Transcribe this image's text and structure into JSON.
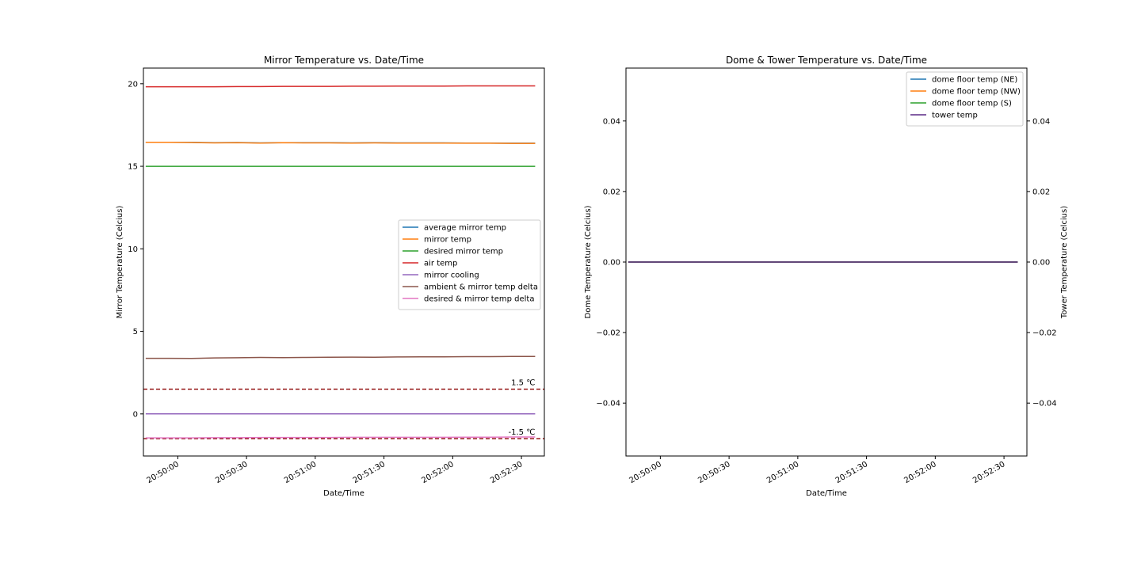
{
  "colors": {
    "average_mirror_temp": "#1f77b4",
    "mirror_temp": "#ff7f0e",
    "desired_mirror_temp": "#2ca02c",
    "air_temp": "#d62728",
    "mirror_cooling": "#9467bd",
    "ambient_delta": "#8c564b",
    "desired_delta": "#e377c2",
    "threshold": "#8b0000",
    "tower_temp": "#5b2a86"
  },
  "chart_data": [
    {
      "type": "line",
      "title": "Mirror Temperature vs. Date/Time",
      "xlabel": "Date/Time",
      "ylabel": "Mirror Temperature (Celcius)",
      "x_range": [
        "20:49:45",
        "20:52:40"
      ],
      "ylim": [
        -2.55,
        20.95
      ],
      "x_ticks": [
        "20:50:00",
        "20:50:30",
        "20:51:00",
        "20:51:30",
        "20:52:00",
        "20:52:30"
      ],
      "y_ticks": [
        "0",
        "5",
        "10",
        "15",
        "20"
      ],
      "y_tick_values": [
        0,
        5,
        10,
        15,
        20
      ],
      "legend_position": "center-right",
      "grid": false,
      "x": [
        "20:49:46",
        "20:49:56",
        "20:50:06",
        "20:50:16",
        "20:50:26",
        "20:50:36",
        "20:50:46",
        "20:50:56",
        "20:51:06",
        "20:51:16",
        "20:51:26",
        "20:51:36",
        "20:51:46",
        "20:51:56",
        "20:52:06",
        "20:52:16",
        "20:52:26",
        "20:52:36"
      ],
      "series": [
        {
          "name": "average mirror temp",
          "color_key": "average_mirror_temp",
          "values": [
            16.45,
            16.45,
            16.45,
            16.43,
            16.44,
            16.42,
            16.43,
            16.43,
            16.43,
            16.42,
            16.43,
            16.42,
            16.42,
            16.42,
            16.41,
            16.41,
            16.4,
            16.4
          ]
        },
        {
          "name": "mirror temp",
          "color_key": "mirror_temp",
          "values": [
            16.45,
            16.45,
            16.44,
            16.42,
            16.43,
            16.41,
            16.43,
            16.42,
            16.42,
            16.41,
            16.42,
            16.41,
            16.41,
            16.41,
            16.4,
            16.4,
            16.39,
            16.39
          ]
        },
        {
          "name": "desired mirror temp",
          "color_key": "desired_mirror_temp",
          "values": [
            15,
            15,
            15,
            15,
            15,
            15,
            15,
            15,
            15,
            15,
            15,
            15,
            15,
            15,
            15,
            15,
            15,
            15
          ]
        },
        {
          "name": "air temp",
          "color_key": "air_temp",
          "values": [
            19.82,
            19.82,
            19.82,
            19.82,
            19.83,
            19.83,
            19.84,
            19.84,
            19.84,
            19.85,
            19.85,
            19.86,
            19.86,
            19.86,
            19.87,
            19.87,
            19.87,
            19.87
          ]
        },
        {
          "name": "mirror cooling",
          "color_key": "mirror_cooling",
          "values": [
            0,
            0,
            0,
            0,
            0,
            0,
            0,
            0,
            0,
            0,
            0,
            0,
            0,
            0,
            0,
            0,
            0,
            0
          ]
        },
        {
          "name": "ambient & mirror temp delta",
          "color_key": "ambient_delta",
          "values": [
            3.37,
            3.37,
            3.36,
            3.39,
            3.4,
            3.42,
            3.41,
            3.42,
            3.43,
            3.44,
            3.43,
            3.45,
            3.46,
            3.46,
            3.47,
            3.47,
            3.48,
            3.48
          ]
        },
        {
          "name": "desired & mirror temp delta",
          "color_key": "desired_delta",
          "values": [
            -1.45,
            -1.45,
            -1.45,
            -1.44,
            -1.44,
            -1.43,
            -1.43,
            -1.43,
            -1.43,
            -1.42,
            -1.42,
            -1.42,
            -1.42,
            -1.42,
            -1.41,
            -1.41,
            -1.4,
            -1.4
          ]
        }
      ],
      "hlines": [
        {
          "y": 1.5,
          "label": "1.5 ℃",
          "color_key": "threshold"
        },
        {
          "y": -1.5,
          "label": "-1.5 ℃",
          "color_key": "threshold"
        }
      ]
    },
    {
      "type": "line",
      "title": "Dome & Tower Temperature vs. Date/Time",
      "xlabel": "Date/Time",
      "ylabel": "Dome Temperature (Celcius)",
      "ylabel_right": "Tower Temperature (Celcius)",
      "x_range": [
        "20:49:45",
        "20:52:40"
      ],
      "ylim": [
        -0.055,
        0.055
      ],
      "x_ticks": [
        "20:50:00",
        "20:50:30",
        "20:51:00",
        "20:51:30",
        "20:52:00",
        "20:52:30"
      ],
      "y_ticks": [
        "−0.04",
        "−0.02",
        "0.00",
        "0.02",
        "0.04"
      ],
      "y_tick_values": [
        -0.04,
        -0.02,
        0,
        0.02,
        0.04
      ],
      "legend_position": "top-right",
      "grid": false,
      "x_start": "20:49:46",
      "x_end": "20:52:36",
      "series": [
        {
          "name": "dome floor temp (NE)",
          "color_key": "average_mirror_temp",
          "values": [
            0,
            0
          ]
        },
        {
          "name": "dome floor temp (NW)",
          "color_key": "mirror_temp",
          "values": [
            0,
            0
          ]
        },
        {
          "name": "dome floor temp (S)",
          "color_key": "desired_mirror_temp",
          "values": [
            0,
            0
          ]
        },
        {
          "name": "tower temp",
          "color_key": "tower_temp",
          "values": [
            0,
            0
          ]
        }
      ]
    }
  ]
}
